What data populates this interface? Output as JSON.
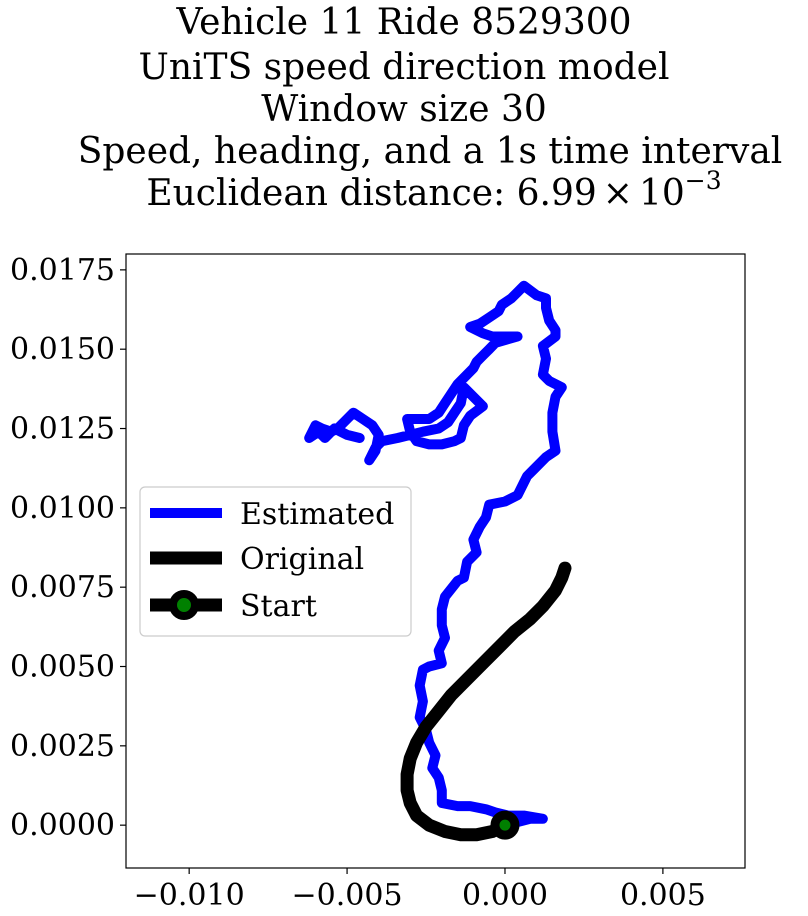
{
  "chart_data": {
    "type": "line",
    "title": {
      "lines": [
        "Vehicle 11 Ride 8529300",
        "UniTS speed direction model",
        "Window size 30",
        "Speed, heading, and a 1s time interval"
      ],
      "distance_label": "Euclidean distance: ",
      "distance_mantissa": "6.99",
      "distance_times": "×",
      "distance_base": "10",
      "distance_exp": "−3"
    },
    "xlim": [
      -0.012,
      0.0076
    ],
    "ylim": [
      -0.00135,
      0.018
    ],
    "x_ticks": [
      {
        "value": -0.01,
        "label": "−0.010"
      },
      {
        "value": -0.005,
        "label": "−0.005"
      },
      {
        "value": 0.0,
        "label": "0.000"
      },
      {
        "value": 0.005,
        "label": "0.005"
      }
    ],
    "y_ticks": [
      {
        "value": 0.0,
        "label": "0.0000"
      },
      {
        "value": 0.0025,
        "label": "0.0025"
      },
      {
        "value": 0.005,
        "label": "0.0050"
      },
      {
        "value": 0.0075,
        "label": "0.0075"
      },
      {
        "value": 0.01,
        "label": "0.0100"
      },
      {
        "value": 0.0125,
        "label": "0.0125"
      },
      {
        "value": 0.015,
        "label": "0.0150"
      },
      {
        "value": 0.0175,
        "label": "0.0175"
      }
    ],
    "grid": false,
    "legend": {
      "placement": "center-left",
      "entries": [
        {
          "name": "Estimated",
          "color": "#0000ff"
        },
        {
          "name": "Original",
          "color": "#000000"
        },
        {
          "name": "Start",
          "color": "#000000",
          "marker_color": "#008000"
        }
      ]
    },
    "series": [
      {
        "name": "Estimated",
        "color": "#0000ff",
        "points": [
          [
            0.0,
            0.0
          ],
          [
            0.0004,
            0.0001
          ],
          [
            0.0008,
            0.0002
          ],
          [
            0.0012,
            0.0002
          ],
          [
            0.0006,
            0.0003
          ],
          [
            0.0001,
            0.0003
          ],
          [
            -0.0003,
            0.0004
          ],
          [
            -0.0006,
            0.0005
          ],
          [
            -0.0011,
            0.0006
          ],
          [
            -0.0015,
            0.0006
          ],
          [
            -0.002,
            0.0007
          ],
          [
            -0.002,
            0.0011
          ],
          [
            -0.0021,
            0.0015
          ],
          [
            -0.0023,
            0.0018
          ],
          [
            -0.0022,
            0.0022
          ],
          [
            -0.0024,
            0.0026
          ],
          [
            -0.0025,
            0.003
          ],
          [
            -0.0027,
            0.0034
          ],
          [
            -0.0026,
            0.0039
          ],
          [
            -0.0027,
            0.0044
          ],
          [
            -0.0026,
            0.0049
          ],
          [
            -0.0024,
            0.005
          ],
          [
            -0.002,
            0.0051
          ],
          [
            -0.0021,
            0.0055
          ],
          [
            -0.0019,
            0.0059
          ],
          [
            -0.002,
            0.0063
          ],
          [
            -0.002,
            0.0068
          ],
          [
            -0.0019,
            0.0072
          ],
          [
            -0.0015,
            0.0077
          ],
          [
            -0.0013,
            0.0078
          ],
          [
            -0.0012,
            0.0083
          ],
          [
            -0.0009,
            0.0086
          ],
          [
            -0.001,
            0.009
          ],
          [
            -0.0008,
            0.0094
          ],
          [
            -0.0006,
            0.0097
          ],
          [
            -0.0005,
            0.0101
          ],
          [
            0.0,
            0.0102
          ],
          [
            0.0004,
            0.0104
          ],
          [
            0.0006,
            0.0108
          ],
          [
            0.0007,
            0.011
          ],
          [
            0.0009,
            0.0112
          ],
          [
            0.0013,
            0.0116
          ],
          [
            0.0016,
            0.0118
          ],
          [
            0.0015,
            0.0124
          ],
          [
            0.0015,
            0.013
          ],
          [
            0.0016,
            0.0135
          ],
          [
            0.0018,
            0.0138
          ],
          [
            0.0014,
            0.014
          ],
          [
            0.0012,
            0.0142
          ],
          [
            0.0013,
            0.0147
          ],
          [
            0.0012,
            0.0151
          ],
          [
            0.0016,
            0.0154
          ],
          [
            0.0016,
            0.0156
          ],
          [
            0.0014,
            0.0159
          ],
          [
            0.0013,
            0.0163
          ],
          [
            0.0013,
            0.0166
          ],
          [
            0.001,
            0.0167
          ],
          [
            0.0006,
            0.017
          ],
          [
            0.0004,
            0.0168
          ],
          [
            0.0002,
            0.0166
          ],
          [
            -0.0001,
            0.0164
          ],
          [
            -0.0002,
            0.0162
          ],
          [
            -0.0005,
            0.016
          ],
          [
            -0.0008,
            0.0158
          ],
          [
            -0.0011,
            0.0157
          ],
          [
            -0.0007,
            0.0155
          ],
          [
            -0.0004,
            0.0154
          ],
          [
            0.0004,
            0.0154
          ],
          [
            -0.0003,
            0.0152
          ],
          [
            -0.0005,
            0.015
          ],
          [
            -0.0007,
            0.0148
          ],
          [
            -0.0009,
            0.0146
          ],
          [
            -0.001,
            0.0144
          ],
          [
            -0.0013,
            0.0141
          ],
          [
            -0.0015,
            0.0139
          ],
          [
            -0.0017,
            0.0136
          ],
          [
            -0.0019,
            0.0133
          ],
          [
            -0.0021,
            0.013
          ],
          [
            -0.0024,
            0.0128
          ],
          [
            -0.0031,
            0.0128
          ],
          [
            -0.003,
            0.0124
          ],
          [
            -0.0028,
            0.0121
          ],
          [
            -0.0024,
            0.012
          ],
          [
            -0.002,
            0.012
          ],
          [
            -0.0016,
            0.0121
          ],
          [
            -0.0014,
            0.0122
          ],
          [
            -0.0013,
            0.0126
          ],
          [
            -0.0011,
            0.0129
          ],
          [
            -0.0007,
            0.0132
          ],
          [
            -0.001,
            0.0135
          ],
          [
            -0.0013,
            0.0138
          ],
          [
            -0.0014,
            0.0133
          ],
          [
            -0.0016,
            0.013
          ],
          [
            -0.0018,
            0.0127
          ],
          [
            -0.0021,
            0.0125
          ],
          [
            -0.0026,
            0.0124
          ],
          [
            -0.003,
            0.0123
          ],
          [
            -0.0034,
            0.0122
          ],
          [
            -0.0039,
            0.0121
          ],
          [
            -0.0041,
            0.0119
          ],
          [
            -0.0043,
            0.0115
          ],
          [
            -0.0041,
            0.0118
          ],
          [
            -0.004,
            0.0123
          ],
          [
            -0.0042,
            0.0126
          ],
          [
            -0.0045,
            0.0128
          ],
          [
            -0.0048,
            0.013
          ],
          [
            -0.005,
            0.0128
          ],
          [
            -0.0053,
            0.0125
          ],
          [
            -0.0055,
            0.0124
          ],
          [
            -0.0058,
            0.0125
          ],
          [
            -0.006,
            0.0126
          ],
          [
            -0.0062,
            0.0122
          ],
          [
            -0.0059,
            0.0124
          ],
          [
            -0.0057,
            0.0122
          ],
          [
            -0.0054,
            0.0125
          ],
          [
            -0.005,
            0.0123
          ],
          [
            -0.0046,
            0.0122
          ]
        ]
      },
      {
        "name": "Original",
        "color": "#000000",
        "points": [
          [
            0.0,
            0.0
          ],
          [
            -0.0004,
            -0.0002
          ],
          [
            -0.0009,
            -0.0003
          ],
          [
            -0.0014,
            -0.0003
          ],
          [
            -0.0019,
            -0.0002
          ],
          [
            -0.0024,
            0.0
          ],
          [
            -0.0028,
            0.0003
          ],
          [
            -0.003,
            0.0007
          ],
          [
            -0.0031,
            0.0011
          ],
          [
            -0.0031,
            0.0016
          ],
          [
            -0.003,
            0.0021
          ],
          [
            -0.0028,
            0.0026
          ],
          [
            -0.0025,
            0.0031
          ],
          [
            -0.0021,
            0.0036
          ],
          [
            -0.0017,
            0.0041
          ],
          [
            -0.0012,
            0.0046
          ],
          [
            -0.0007,
            0.0051
          ],
          [
            -0.0002,
            0.0056
          ],
          [
            0.0003,
            0.0061
          ],
          [
            0.0008,
            0.0065
          ],
          [
            0.0012,
            0.0069
          ],
          [
            0.0016,
            0.0074
          ],
          [
            0.0018,
            0.0078
          ],
          [
            0.0019,
            0.0081
          ]
        ]
      }
    ],
    "start_point": [
      0.0,
      0.0
    ]
  }
}
